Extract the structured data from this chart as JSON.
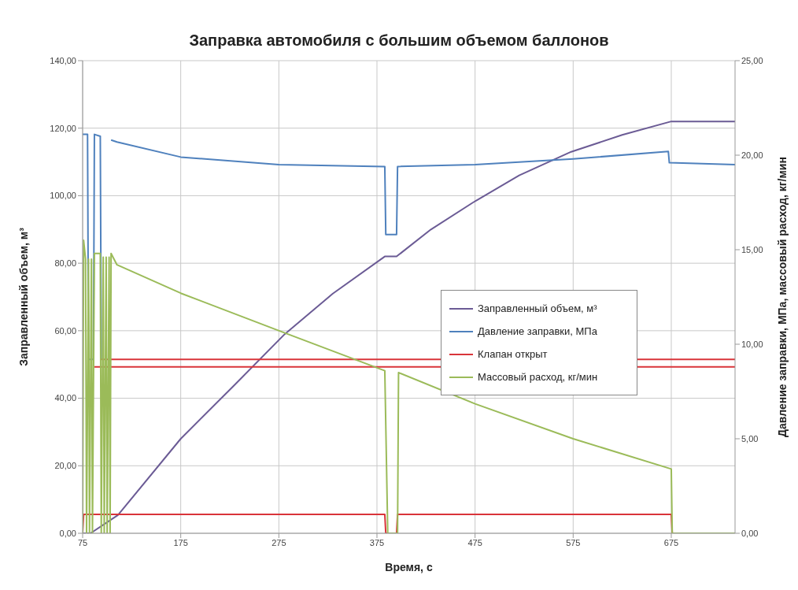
{
  "chart_data": {
    "type": "line",
    "title": "Заправка автомобиля с большим объемом баллонов",
    "xlabel": "Время, с",
    "ylabel": "Заправленный объем, м³",
    "y2label": "Давление заправки, МПа, массовый расход, кг/мин",
    "xlim": [
      75,
      740
    ],
    "xticks": [
      75,
      175,
      275,
      375,
      475,
      575,
      675
    ],
    "ylim": [
      0,
      140
    ],
    "yticks": [
      {
        "value": 0,
        "label": "0,00"
      },
      {
        "value": 20,
        "label": "20,00"
      },
      {
        "value": 40,
        "label": "40,00"
      },
      {
        "value": 60,
        "label": "60,00"
      },
      {
        "value": 80,
        "label": "80,00"
      },
      {
        "value": 100,
        "label": "100,00"
      },
      {
        "value": 120,
        "label": "120,00"
      },
      {
        "value": 140,
        "label": "140,00"
      }
    ],
    "y2lim": [
      0,
      25
    ],
    "y2ticks": [
      {
        "value": 0,
        "label": "0,00"
      },
      {
        "value": 5,
        "label": "5,00"
      },
      {
        "value": 10,
        "label": "10,00"
      },
      {
        "value": 15,
        "label": "15,00"
      },
      {
        "value": 20,
        "label": "20,00"
      },
      {
        "value": 25,
        "label": "25,00"
      }
    ],
    "grid": true,
    "legend": "right",
    "marker": "none",
    "line_style": "solid",
    "series": [
      {
        "name": "Заправленный объем, м³",
        "color": "#6b5b95",
        "x": [
          75,
          83,
          111,
          175,
          230,
          281,
          330,
          383,
          395,
          430,
          473,
          520,
          573,
          625,
          675,
          740
        ],
        "values": [
          0,
          0,
          5.4,
          28,
          44,
          59,
          71,
          82,
          82,
          90,
          98,
          106,
          113,
          118,
          122,
          122
        ]
      },
      {
        "name": "Давление заправки, МПа",
        "color": "#4f81bd",
        "axis": "y2",
        "x": [
          75,
          80,
          81,
          86,
          87,
          93,
          94,
          103,
          104,
          110,
          175,
          275,
          383,
          384,
          395,
          396,
          475,
          575,
          672,
          673,
          740
        ],
        "values": [
          21.1,
          21.1,
          9.2,
          9.2,
          21.1,
          21.0,
          9.2,
          null,
          20.8,
          20.7,
          19.9,
          19.5,
          19.4,
          15.8,
          15.8,
          19.4,
          19.5,
          19.8,
          20.2,
          19.6,
          19.5
        ]
      },
      {
        "name": "Клапан открыт",
        "color": "#d9343a",
        "axis": "y2",
        "x": [
          75,
          76,
          383,
          384,
          395,
          396,
          675,
          676,
          740
        ],
        "values": [
          0,
          1,
          1,
          0,
          0,
          1,
          1,
          0,
          0
        ]
      },
      {
        "color": "#d9343a",
        "axis": "y2",
        "x": [
          93,
          740
        ],
        "values": [
          9.2,
          9.2
        ]
      },
      {
        "color": "#d9343a",
        "axis": "y2",
        "x": [
          87,
          740
        ],
        "values": [
          8.8,
          8.8
        ]
      },
      {
        "name": "Массовый расход, кг/мин",
        "color": "#9bbb59",
        "axis": "y2",
        "x": [
          75,
          76,
          78,
          79,
          81,
          82,
          84,
          85,
          87,
          93,
          94,
          96,
          97,
          99,
          100,
          102,
          103,
          104,
          110,
          175,
          281,
          383,
          386,
          396,
          397,
          475,
          575,
          675,
          676,
          740
        ],
        "values": [
          0,
          15.5,
          14.5,
          0,
          14.5,
          0,
          14.5,
          0,
          14.8,
          14.8,
          0,
          14.6,
          0,
          14.6,
          0,
          14.6,
          0,
          14.8,
          14.2,
          12.7,
          10.6,
          8.6,
          0,
          0,
          8.5,
          6.85,
          5.0,
          3.4,
          0,
          0
        ]
      }
    ]
  }
}
